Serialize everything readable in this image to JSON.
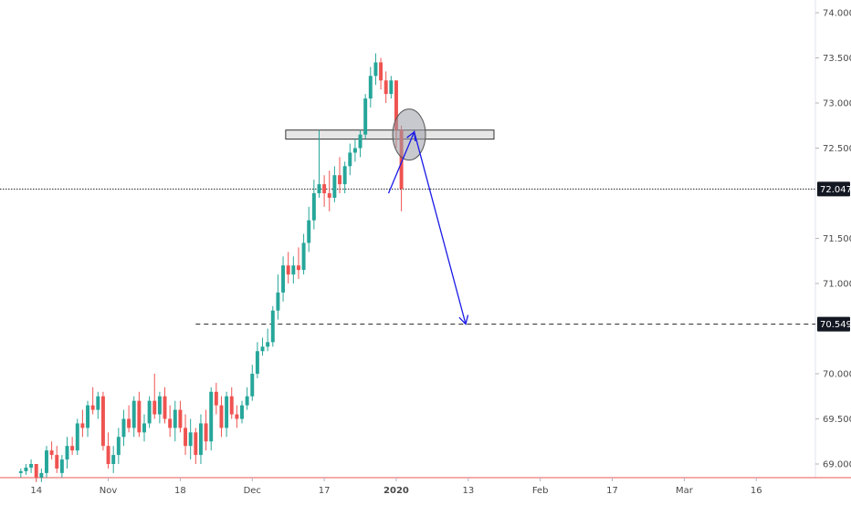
{
  "chart_data": {
    "type": "candlestick",
    "y_ticks": [
      "74.000",
      "73.500",
      "73.000",
      "72.500",
      "71.500",
      "71.000",
      "70.000",
      "69.500",
      "69.000"
    ],
    "y_tick_values": [
      74.0,
      73.5,
      73.0,
      72.5,
      71.5,
      71.0,
      70.0,
      69.5,
      69.0
    ],
    "ylim": [
      68.85,
      74.15
    ],
    "x_ticks": [
      "14",
      "Nov",
      "18",
      "Dec",
      "17",
      "2020",
      "13",
      "Feb",
      "17",
      "Mar",
      "16"
    ],
    "x_tick_bars": [
      3,
      17,
      31,
      45,
      59,
      73,
      87,
      101,
      115,
      129,
      143
    ],
    "bar_count_visible": 155,
    "colors": {
      "up": "#26a69a",
      "down": "#ef5350",
      "projection": "#1a1ae6",
      "axis_line": "#e85a5a"
    },
    "horizontal_lines": [
      {
        "price": 72.047,
        "label": "72.047",
        "style": "dotted",
        "from_bar": 0
      },
      {
        "price": 70.549,
        "label": "70.549",
        "style": "dashed",
        "from_bar": 34
      }
    ],
    "resistance_zone": {
      "price_low": 72.6,
      "price_high": 72.7,
      "from_bar": 52,
      "to_bar": 92
    },
    "highlight_circle": {
      "bar": 75.5,
      "price": 72.65
    },
    "projection_path": [
      {
        "bar": 71.5,
        "price": 72.0
      },
      {
        "bar": 76.5,
        "price": 72.68
      },
      {
        "bar": 86.5,
        "price": 70.55
      }
    ],
    "candles": [
      [
        68.9,
        68.95,
        68.85,
        68.92
      ],
      [
        68.92,
        69.0,
        68.88,
        68.96
      ],
      [
        68.96,
        69.05,
        68.9,
        69.0
      ],
      [
        69.0,
        69.0,
        68.8,
        68.85
      ],
      [
        68.85,
        68.95,
        68.8,
        68.9
      ],
      [
        68.9,
        69.2,
        68.85,
        69.15
      ],
      [
        69.15,
        69.25,
        69.05,
        69.1
      ],
      [
        69.1,
        69.2,
        68.9,
        68.95
      ],
      [
        68.9,
        69.1,
        68.85,
        69.05
      ],
      [
        69.05,
        69.3,
        68.95,
        69.2
      ],
      [
        69.2,
        69.3,
        69.1,
        69.15
      ],
      [
        69.15,
        69.5,
        69.1,
        69.45
      ],
      [
        69.45,
        69.6,
        69.3,
        69.4
      ],
      [
        69.4,
        69.7,
        69.3,
        69.65
      ],
      [
        69.65,
        69.85,
        69.55,
        69.6
      ],
      [
        69.6,
        69.8,
        69.5,
        69.75
      ],
      [
        69.75,
        69.8,
        69.15,
        69.2
      ],
      [
        69.2,
        69.35,
        68.95,
        69.0
      ],
      [
        69.0,
        69.2,
        68.9,
        69.1
      ],
      [
        69.1,
        69.4,
        69.0,
        69.3
      ],
      [
        69.3,
        69.6,
        69.2,
        69.5
      ],
      [
        69.5,
        69.65,
        69.35,
        69.4
      ],
      [
        69.4,
        69.75,
        69.3,
        69.7
      ],
      [
        69.7,
        69.8,
        69.3,
        69.35
      ],
      [
        69.35,
        69.55,
        69.25,
        69.45
      ],
      [
        69.45,
        69.75,
        69.4,
        69.7
      ],
      [
        69.7,
        70.0,
        69.5,
        69.55
      ],
      [
        69.55,
        69.8,
        69.45,
        69.75
      ],
      [
        69.75,
        69.85,
        69.45,
        69.5
      ],
      [
        69.5,
        69.65,
        69.3,
        69.4
      ],
      [
        69.4,
        69.7,
        69.25,
        69.6
      ],
      [
        69.6,
        69.7,
        69.35,
        69.4
      ],
      [
        69.4,
        69.55,
        69.1,
        69.2
      ],
      [
        69.2,
        69.5,
        69.05,
        69.35
      ],
      [
        69.35,
        69.4,
        69.0,
        69.1
      ],
      [
        69.1,
        69.55,
        69.0,
        69.45
      ],
      [
        69.45,
        69.6,
        69.15,
        69.25
      ],
      [
        69.25,
        69.85,
        69.15,
        69.8
      ],
      [
        69.8,
        69.9,
        69.55,
        69.65
      ],
      [
        69.65,
        69.75,
        69.3,
        69.4
      ],
      [
        69.4,
        69.8,
        69.3,
        69.75
      ],
      [
        69.75,
        69.85,
        69.5,
        69.55
      ],
      [
        69.55,
        69.65,
        69.4,
        69.5
      ],
      [
        69.5,
        69.7,
        69.45,
        69.65
      ],
      [
        69.65,
        69.85,
        69.6,
        69.75
      ],
      [
        69.75,
        70.1,
        69.7,
        70.0
      ],
      [
        70.0,
        70.35,
        69.95,
        70.25
      ],
      [
        70.25,
        70.4,
        70.2,
        70.3
      ],
      [
        70.3,
        70.5,
        70.25,
        70.35
      ],
      [
        70.35,
        70.75,
        70.3,
        70.7
      ],
      [
        70.7,
        71.1,
        70.6,
        70.9
      ],
      [
        70.9,
        71.3,
        70.8,
        71.2
      ],
      [
        71.2,
        71.35,
        71.0,
        71.1
      ],
      [
        71.1,
        71.3,
        71.0,
        71.2
      ],
      [
        71.2,
        71.4,
        71.05,
        71.15
      ],
      [
        71.15,
        71.55,
        71.1,
        71.45
      ],
      [
        71.45,
        71.85,
        71.35,
        71.7
      ],
      [
        71.7,
        72.15,
        71.6,
        72.0
      ],
      [
        72.0,
        72.7,
        71.95,
        72.1
      ],
      [
        72.1,
        72.2,
        71.85,
        72.0
      ],
      [
        72.0,
        72.25,
        71.8,
        71.95
      ],
      [
        71.95,
        72.3,
        71.9,
        72.2
      ],
      [
        72.2,
        72.4,
        72.0,
        72.1
      ],
      [
        72.1,
        72.35,
        72.0,
        72.3
      ],
      [
        72.3,
        72.55,
        72.2,
        72.45
      ],
      [
        72.45,
        72.6,
        72.35,
        72.5
      ],
      [
        72.5,
        72.7,
        72.4,
        72.65
      ],
      [
        72.65,
        73.1,
        72.6,
        73.05
      ],
      [
        73.05,
        73.4,
        72.95,
        73.3
      ],
      [
        73.3,
        73.55,
        73.2,
        73.45
      ],
      [
        73.45,
        73.5,
        73.15,
        73.25
      ],
      [
        73.25,
        73.35,
        73.0,
        73.1
      ],
      [
        73.1,
        73.3,
        73.05,
        73.25
      ],
      [
        73.25,
        73.25,
        72.5,
        72.7
      ],
      [
        72.7,
        72.75,
        71.8,
        72.05
      ]
    ]
  }
}
